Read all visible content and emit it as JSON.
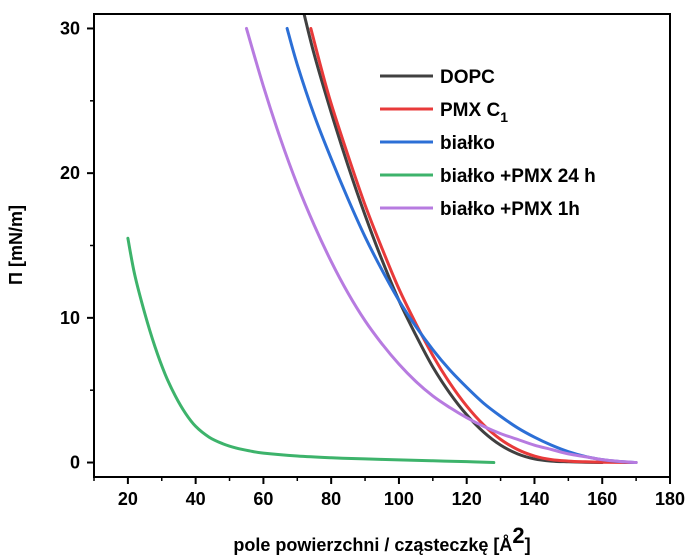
{
  "chart_data": {
    "type": "line",
    "xlabel_main": "pole powierzchni / cząsteczkę [Å",
    "xlabel_sup": "2",
    "xlabel_close": "]",
    "ylabel": "Π [mN/m]",
    "xlim": [
      10,
      180
    ],
    "ylim": [
      -1,
      31
    ],
    "x_ticks": [
      20,
      40,
      60,
      80,
      100,
      120,
      140,
      160,
      180
    ],
    "y_ticks": [
      0,
      10,
      20,
      30
    ],
    "grid": false,
    "legend_position": "top-right",
    "series": [
      {
        "name": "DOPC",
        "name_sub": "",
        "color": "#404040",
        "x": [
          72,
          75,
          80,
          85,
          90,
          95,
          100,
          105,
          110,
          115,
          120,
          125,
          130,
          135,
          140,
          145,
          150,
          155,
          160
        ],
        "y": [
          31,
          28.2,
          24.2,
          20.5,
          17.1,
          14.0,
          11.2,
          8.8,
          6.6,
          4.8,
          3.3,
          2.1,
          1.2,
          0.6,
          0.25,
          0.1,
          0.05,
          0.02,
          0.0
        ]
      },
      {
        "name": "PMX C",
        "name_sub": "1",
        "color": "#e83a3a",
        "x": [
          74,
          77,
          80,
          85,
          90,
          95,
          100,
          105,
          110,
          115,
          120,
          125,
          130,
          135,
          140,
          145,
          150,
          155,
          160,
          165,
          170
        ],
        "y": [
          30,
          27.3,
          24.8,
          21.2,
          17.8,
          14.8,
          12.0,
          9.6,
          7.4,
          5.5,
          3.9,
          2.6,
          1.6,
          0.9,
          0.45,
          0.2,
          0.1,
          0.05,
          0.02,
          0.01,
          0.0
        ]
      },
      {
        "name": "białko",
        "name_sub": "",
        "color": "#2c6fd6",
        "x": [
          67,
          70,
          75,
          80,
          85,
          90,
          95,
          100,
          105,
          110,
          115,
          120,
          125,
          130,
          135,
          140,
          145,
          150,
          155,
          160,
          165,
          170
        ],
        "y": [
          30,
          27.5,
          24.0,
          21.0,
          18.2,
          15.6,
          13.3,
          11.2,
          9.4,
          7.8,
          6.4,
          5.2,
          4.1,
          3.2,
          2.4,
          1.75,
          1.2,
          0.75,
          0.42,
          0.2,
          0.07,
          0.0
        ]
      },
      {
        "name": "białko +PMX 24 h",
        "name_sub": "",
        "color": "#3db36b",
        "x": [
          20,
          22,
          25,
          28,
          31,
          34,
          37,
          40,
          44,
          48,
          52,
          56,
          60,
          70,
          80,
          90,
          100,
          110,
          120,
          128
        ],
        "y": [
          15.5,
          13.0,
          10.3,
          8.0,
          6.1,
          4.6,
          3.4,
          2.5,
          1.75,
          1.3,
          1.0,
          0.8,
          0.65,
          0.45,
          0.33,
          0.25,
          0.18,
          0.12,
          0.06,
          0.0
        ]
      },
      {
        "name": "białko +PMX 1h",
        "name_sub": "",
        "color": "#b77be0",
        "x": [
          55,
          60,
          65,
          70,
          75,
          80,
          85,
          90,
          95,
          100,
          105,
          110,
          115,
          120,
          125,
          130,
          135,
          140,
          145,
          150,
          155,
          160,
          165,
          170
        ],
        "y": [
          30,
          26.0,
          22.4,
          19.2,
          16.4,
          13.9,
          11.7,
          9.8,
          8.2,
          6.8,
          5.6,
          4.6,
          3.8,
          3.1,
          2.5,
          2.0,
          1.6,
          1.2,
          0.9,
          0.6,
          0.4,
          0.2,
          0.08,
          0.0
        ]
      }
    ]
  }
}
